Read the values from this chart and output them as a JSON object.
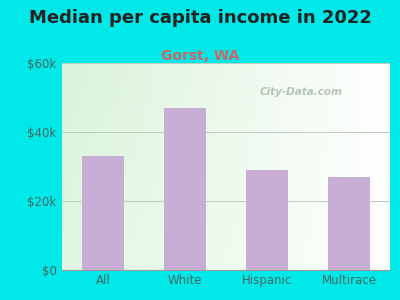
{
  "title": "Median per capita income in 2022",
  "subtitle": "Gorst, WA",
  "categories": [
    "All",
    "White",
    "Hispanic",
    "Multirace"
  ],
  "values": [
    33000,
    47000,
    29000,
    27000
  ],
  "bar_color": "#c8aed4",
  "background_color": "#00e8e8",
  "plot_bg_top_left": "#d8f0d8",
  "plot_bg_bottom_right": "#f8fef8",
  "title_color": "#222222",
  "subtitle_color": "#cc6666",
  "tick_label_color": "#446666",
  "ylim": [
    0,
    60000
  ],
  "yticks": [
    0,
    20000,
    40000,
    60000
  ],
  "ytick_labels": [
    "$0",
    "$20k",
    "$40k",
    "$60k"
  ],
  "title_fontsize": 13,
  "subtitle_fontsize": 10,
  "watermark": "City-Data.com"
}
